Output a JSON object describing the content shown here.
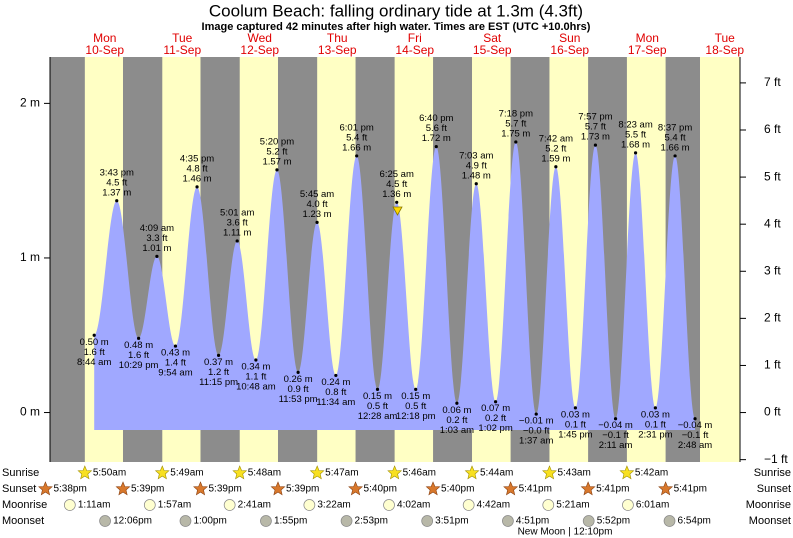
{
  "chart_data": {
    "type": "tide",
    "title": "Coolum Beach: falling  ordinary tide at 1.3m (4.3ft)",
    "subtitle": "Image captured 42 minutes after high water. Times are EST (UTC +10.0hrs)",
    "ylim": [
      -0.32,
      2.3
    ],
    "yticks": [
      {
        "value": 0,
        "label": "0 m"
      },
      {
        "value": 1,
        "label": "1 m"
      },
      {
        "value": 2,
        "label": "2 m"
      }
    ],
    "y2lim": [
      -1.05,
      7.55
    ],
    "y2ticks": [
      {
        "value": -1,
        "label": "−1 ft"
      },
      {
        "value": 0,
        "label": "0 ft"
      },
      {
        "value": 1,
        "label": "1 ft"
      },
      {
        "value": 2,
        "label": "2 ft"
      },
      {
        "value": 3,
        "label": "3 ft"
      },
      {
        "value": 4,
        "label": "4 ft"
      },
      {
        "value": 5,
        "label": "5 ft"
      },
      {
        "value": 6,
        "label": "6 ft"
      },
      {
        "value": 7,
        "label": "7 ft"
      }
    ],
    "color": "#a0a8ff",
    "row_labels": [
      "Sunrise",
      "Sunset",
      "Moonrise",
      "Moonset"
    ],
    "moon_phase": "New Moon | 12:10pm",
    "days": [
      {
        "day": null,
        "date": null,
        "sunset": "5:38pm"
      },
      {
        "day": "Mon",
        "date": "10-Sep",
        "sunrise": "5:50am",
        "sunset": "5:39pm",
        "moonrise": "1:11am",
        "moonset": "12:06pm",
        "tides": {
          "times": [
            "8:44 am",
            "3:43 pm",
            "10:29 pm"
          ],
          "values": [
            0.5,
            1.37,
            0.48
          ],
          "value_labels": [
            "0.50 m",
            "1.37 m",
            "0.48 m"
          ],
          "ft_labels": [
            "1.6 ft",
            "4.5 ft",
            "1.6 ft"
          ]
        }
      },
      {
        "day": "Tue",
        "date": "11-Sep",
        "sunrise": "5:49am",
        "sunset": "5:39pm",
        "moonrise": "1:57am",
        "moonset": "1:00pm",
        "tides": {
          "times": [
            "4:09 am",
            "9:54 am",
            "4:35 pm",
            "11:15 pm"
          ],
          "values": [
            1.01,
            0.43,
            1.46,
            0.37
          ],
          "value_labels": [
            "1.01 m",
            "0.43 m",
            "1.46 m",
            "0.37 m"
          ],
          "ft_labels": [
            "3.3 ft",
            "1.4 ft",
            "4.8 ft",
            "1.2 ft"
          ]
        }
      },
      {
        "day": "Wed",
        "date": "12-Sep",
        "sunrise": "5:48am",
        "sunset": "5:39pm",
        "moonrise": "2:41am",
        "moonset": "1:55pm",
        "tides": {
          "times": [
            "5:01 am",
            "10:48 am",
            "5:20 pm",
            "11:53 pm"
          ],
          "values": [
            1.11,
            0.34,
            1.57,
            0.26
          ],
          "value_labels": [
            "1.11 m",
            "0.34 m",
            "1.57 m",
            "0.26 m"
          ],
          "ft_labels": [
            "3.6 ft",
            "1.1 ft",
            "5.2 ft",
            "0.9 ft"
          ]
        }
      },
      {
        "day": "Thu",
        "date": "13-Sep",
        "sunrise": "5:47am",
        "sunset": "5:40pm",
        "moonrise": "3:22am",
        "moonset": "2:53pm",
        "tides": {
          "times": [
            "5:45 am",
            "11:34 am",
            "6:01 pm"
          ],
          "values": [
            1.23,
            0.24,
            1.66
          ],
          "value_labels": [
            "1.23 m",
            "0.24 m",
            "1.66 m"
          ],
          "ft_labels": [
            "4.0 ft",
            "0.8 ft",
            "5.4 ft"
          ]
        }
      },
      {
        "day": "Fri",
        "date": "14-Sep",
        "sunrise": "5:46am",
        "sunset": "5:40pm",
        "moonrise": "4:02am",
        "moonset": "3:51pm",
        "tides": {
          "times": [
            "12:28 am",
            "6:25 am",
            "12:18 pm",
            "6:40 pm"
          ],
          "values": [
            0.15,
            1.36,
            0.15,
            1.72
          ],
          "value_labels": [
            "0.15 m",
            "1.36 m",
            "0.15 m",
            "1.72 m"
          ],
          "ft_labels": [
            "0.5 ft",
            "4.5 ft",
            "0.5 ft",
            "5.6 ft"
          ]
        }
      },
      {
        "day": "Sat",
        "date": "15-Sep",
        "sunrise": "5:44am",
        "sunset": "5:41pm",
        "moonrise": "4:42am",
        "moonset": "4:51pm",
        "tides": {
          "times": [
            "1:03 am",
            "7:03 am",
            "1:02 pm",
            "7:18 pm"
          ],
          "values": [
            0.06,
            1.48,
            0.07,
            1.75
          ],
          "value_labels": [
            "0.06 m",
            "1.48 m",
            "0.07 m",
            "1.75 m"
          ],
          "ft_labels": [
            "0.2 ft",
            "4.9 ft",
            "0.2 ft",
            "5.7 ft"
          ]
        }
      },
      {
        "day": "Sun",
        "date": "16-Sep",
        "sunrise": "5:43am",
        "sunset": "5:41pm",
        "moonrise": "5:21am",
        "moonset": "5:52pm",
        "tides": {
          "times": [
            "1:37 am",
            "7:42 am",
            "1:45 pm",
            "7:57 pm"
          ],
          "values": [
            -0.01,
            1.59,
            0.03,
            1.73
          ],
          "value_labels": [
            "−0.01 m",
            "1.59 m",
            "0.03 m",
            "1.73 m"
          ],
          "ft_labels": [
            "−0.0 ft",
            "5.2 ft",
            "0.1 ft",
            "5.7 ft"
          ]
        }
      },
      {
        "day": "Mon",
        "date": "17-Sep",
        "sunrise": "5:42am",
        "sunset": "5:41pm",
        "moonrise": "6:01am",
        "moonset": "6:54pm",
        "tides": {
          "times": [
            "2:11 am",
            "8:23 am",
            "2:31 pm",
            "8:37 pm"
          ],
          "values": [
            -0.04,
            1.68,
            0.03,
            1.66
          ],
          "value_labels": [
            "−0.04 m",
            "1.68 m",
            "0.03 m",
            "1.66 m"
          ],
          "ft_labels": [
            "−0.1 ft",
            "5.5 ft",
            "0.1 ft",
            "5.4 ft"
          ]
        }
      },
      {
        "day": "Tue",
        "date": "18-Sep",
        "tides": {
          "times": [
            "2:48 am"
          ],
          "values": [
            -0.04
          ],
          "value_labels": [
            "−0.04 m"
          ],
          "ft_labels": [
            "−0.1 ft"
          ]
        }
      }
    ]
  }
}
